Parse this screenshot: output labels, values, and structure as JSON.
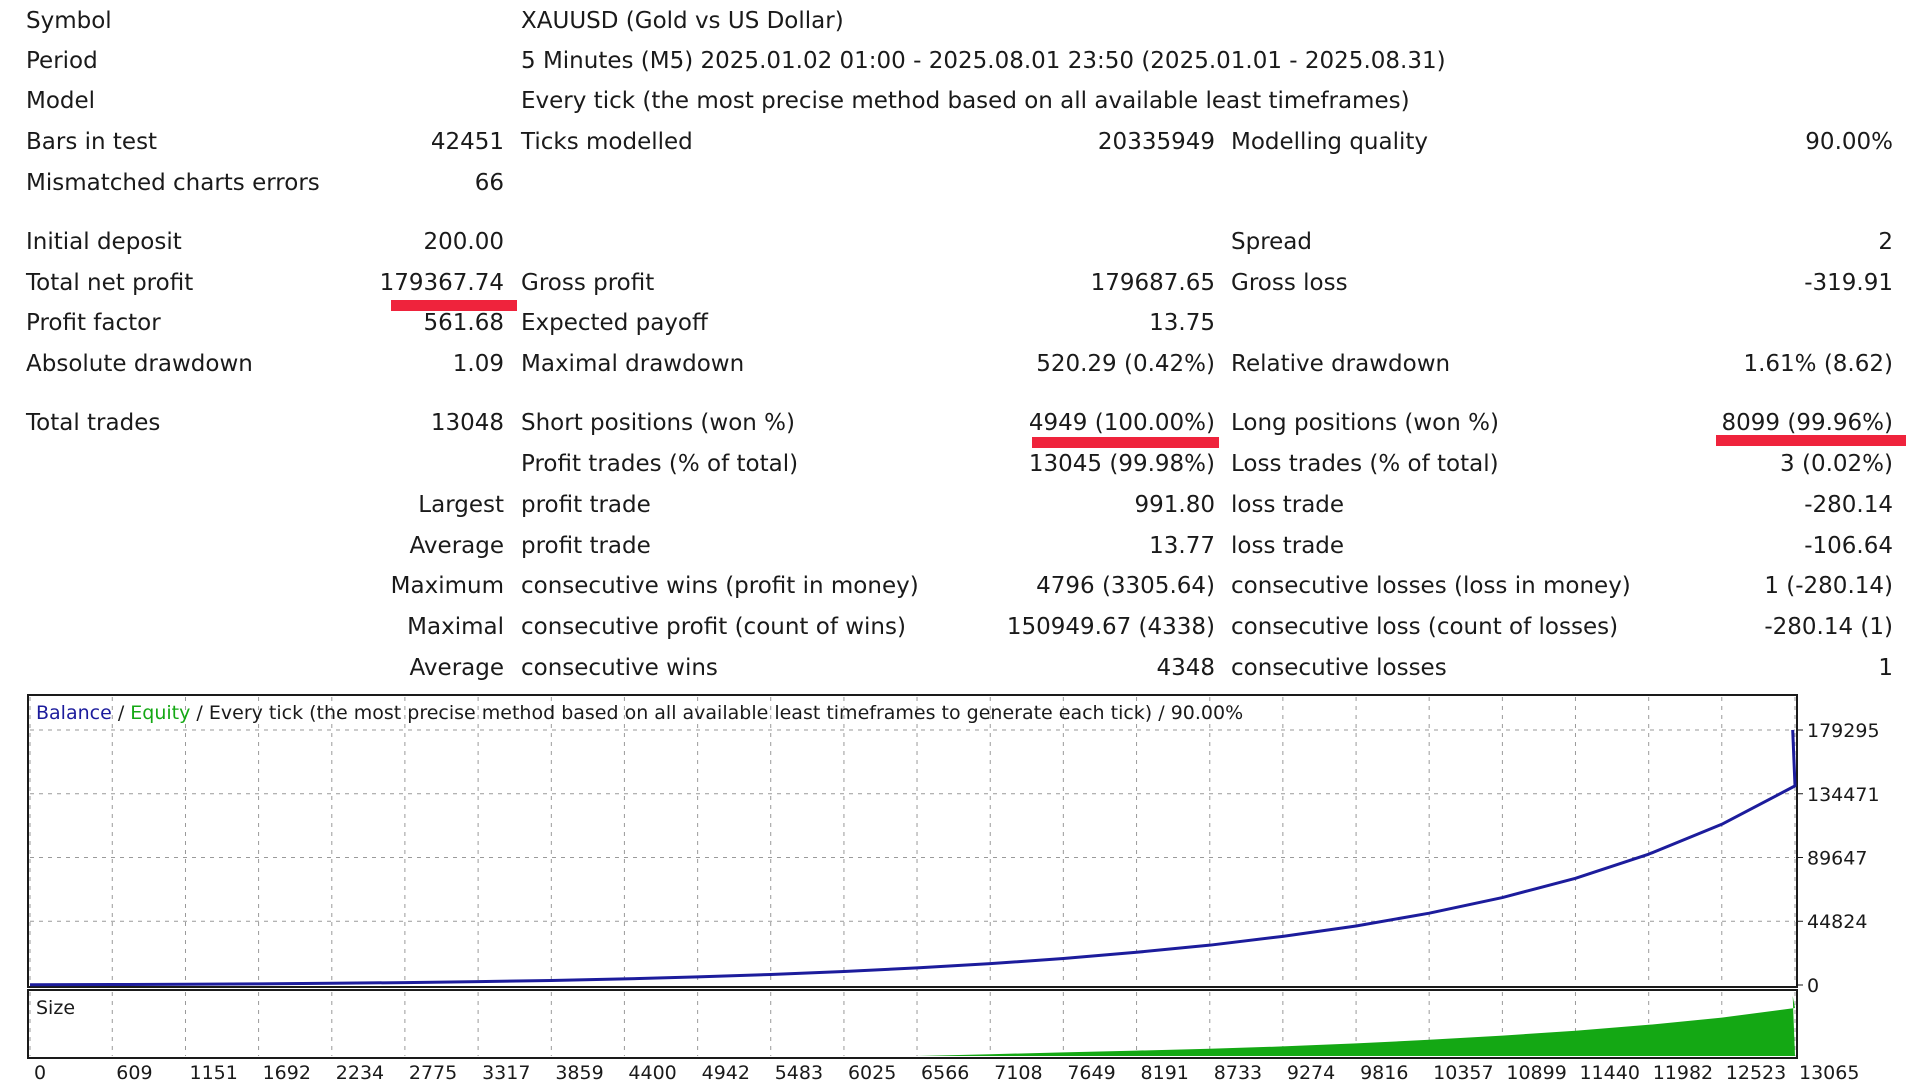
{
  "report": {
    "symbol": {
      "label": "Symbol",
      "value": "XAUUSD (Gold vs US Dollar)"
    },
    "period": {
      "label": "Period",
      "value": "5 Minutes (M5) 2025.01.02 01:00 - 2025.08.01 23:50 (2025.01.01 - 2025.08.31)"
    },
    "model": {
      "label": "Model",
      "value": "Every tick (the most precise method based on all available least timeframes)"
    },
    "bars_in_test": {
      "label": "Bars in test",
      "value": "42451"
    },
    "ticks_modelled": {
      "label": "Ticks modelled",
      "value": "20335949"
    },
    "modelling_quality": {
      "label": "Modelling quality",
      "value": "90.00%"
    },
    "mismatched_errors": {
      "label": "Mismatched charts errors",
      "value": "66"
    },
    "initial_deposit": {
      "label": "Initial deposit",
      "value": "200.00"
    },
    "spread": {
      "label": "Spread",
      "value": "2"
    },
    "total_net_profit": {
      "label": "Total net profit",
      "value": "179367.74"
    },
    "gross_profit": {
      "label": "Gross profit",
      "value": "179687.65"
    },
    "gross_loss": {
      "label": "Gross loss",
      "value": "-319.91"
    },
    "profit_factor": {
      "label": "Profit factor",
      "value": "561.68"
    },
    "expected_payoff": {
      "label": "Expected payoff",
      "value": "13.75"
    },
    "absolute_drawdown": {
      "label": "Absolute drawdown",
      "value": "1.09"
    },
    "maximal_drawdown": {
      "label": "Maximal drawdown",
      "value": "520.29 (0.42%)"
    },
    "relative_drawdown": {
      "label": "Relative drawdown",
      "value": "1.61% (8.62)"
    },
    "total_trades": {
      "label": "Total trades",
      "value": "13048"
    },
    "short_positions": {
      "label": "Short positions (won %)",
      "value": "4949 (100.00%)"
    },
    "long_positions": {
      "label": "Long positions (won %)",
      "value": "8099 (99.96%)"
    },
    "profit_trades": {
      "label": "Profit trades (% of total)",
      "value": "13045 (99.98%)"
    },
    "loss_trades": {
      "label": "Loss trades (% of total)",
      "value": "3 (0.02%)"
    },
    "largest": {
      "prefix": "Largest",
      "profit_label": "profit trade",
      "profit_value": "991.80",
      "loss_label": "loss trade",
      "loss_value": "-280.14"
    },
    "average": {
      "prefix": "Average",
      "profit_label": "profit trade",
      "profit_value": "13.77",
      "loss_label": "loss trade",
      "loss_value": "-106.64"
    },
    "maximum": {
      "prefix": "Maximum",
      "wins_label": "consecutive wins (profit in money)",
      "wins_value": "4796 (3305.64)",
      "losses_label": "consecutive losses (loss in money)",
      "losses_value": "1 (-280.14)"
    },
    "maximal": {
      "prefix": "Maximal",
      "profit_label": "consecutive profit (count of wins)",
      "profit_value": "150949.67 (4338)",
      "loss_label": "consecutive loss (count of losses)",
      "loss_value": "-280.14 (1)"
    },
    "average_consec": {
      "prefix": "Average",
      "wins_label": "consecutive wins",
      "wins_value": "4348",
      "losses_label": "consecutive losses",
      "losses_value": "1"
    }
  },
  "highlight_color": "#ef233c",
  "chart_data": [
    {
      "type": "line",
      "legend": {
        "balance": "Balance",
        "equity": "Equity",
        "description": "Every tick (the most precise method based on all available least timeframes to generate each tick)",
        "quality": "90.00%",
        "separator": "/"
      },
      "y_ticks": [
        "179295",
        "134471",
        "89647",
        "44824",
        "0"
      ],
      "ylim": [
        0,
        179295
      ],
      "xlim": [
        0,
        13065
      ],
      "x_ticks": [
        "0",
        "609",
        "1151",
        "1692",
        "2234",
        "2775",
        "3317",
        "3859",
        "4400",
        "4942",
        "5483",
        "6025",
        "6566",
        "7108",
        "7649",
        "8191",
        "8733",
        "9274",
        "9816",
        "10357",
        "10899",
        "11440",
        "11982",
        "12523",
        "13065"
      ],
      "grid": true,
      "series": [
        {
          "name": "Balance",
          "color": "#1c1c9c",
          "x": [
            0,
            609,
            1151,
            1692,
            2234,
            2775,
            3317,
            3859,
            4400,
            4942,
            5483,
            6025,
            6566,
            7108,
            7649,
            8191,
            8733,
            9274,
            9816,
            10357,
            10899,
            11440,
            11982,
            12523,
            13065,
            13048
          ],
          "y": [
            200,
            350,
            550,
            800,
            1200,
            1700,
            2400,
            3200,
            4300,
            5700,
            7400,
            9500,
            12000,
            15000,
            18600,
            23000,
            28000,
            34200,
            41500,
            50500,
            61500,
            75000,
            92000,
            113000,
            140000,
            179367
          ]
        }
      ]
    },
    {
      "type": "area",
      "label": "Size",
      "color": "#14a814",
      "x": [
        0,
        6566,
        7108,
        7649,
        8191,
        8733,
        9274,
        9816,
        10357,
        10899,
        11440,
        11982,
        12523,
        13065,
        13048
      ],
      "y": [
        0,
        0,
        0.03,
        0.06,
        0.09,
        0.12,
        0.16,
        0.21,
        0.27,
        0.34,
        0.42,
        0.52,
        0.64,
        0.8,
        1.0
      ]
    }
  ]
}
